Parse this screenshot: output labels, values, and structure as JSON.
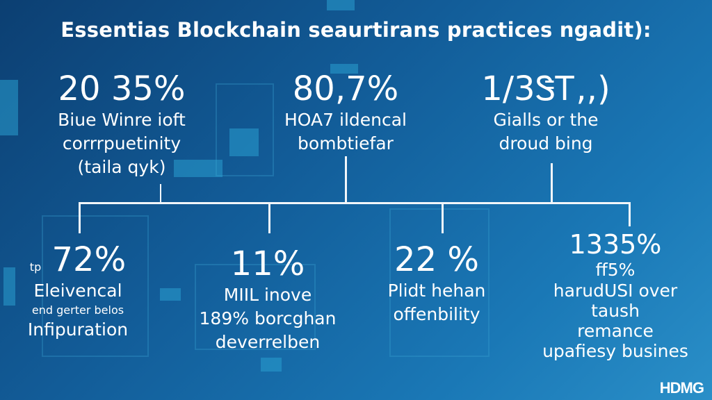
{
  "title": "Essentias Blockchain seaurtirans practices ngadit):",
  "top_stats": [
    {
      "value": "20 35%",
      "lines": [
        "Biue Winre ioft",
        "corrrpuetinity",
        "(taila qyk)"
      ]
    },
    {
      "value": "80,7%",
      "lines": [
        "HOA7 ildencal",
        "bombtiefar"
      ]
    },
    {
      "value": "1/3ᏕᎢ,,)",
      "lines": [
        "Gialls or the",
        "droud bing"
      ]
    }
  ],
  "bottom_stats": [
    {
      "prefix": "tp",
      "value": "72%",
      "lines": [
        "Eleivencal",
        "end gerter belos",
        "Infipuration"
      ]
    },
    {
      "value": "11%",
      "lines": [
        "MIIL inove",
        "189% borcghan",
        "deverrelben"
      ]
    },
    {
      "value": "22 %",
      "lines": [
        "Plidt hehan",
        "offenbility"
      ]
    },
    {
      "value": "1335%",
      "sub": "ff5%",
      "lines": [
        "harudUSI over",
        "taush",
        "remance",
        "upafiesy busines"
      ]
    }
  ],
  "logo": "HDMG",
  "colors": {
    "background": "#125c98",
    "accent": "#2a9fd0",
    "text": "#ffffff"
  }
}
